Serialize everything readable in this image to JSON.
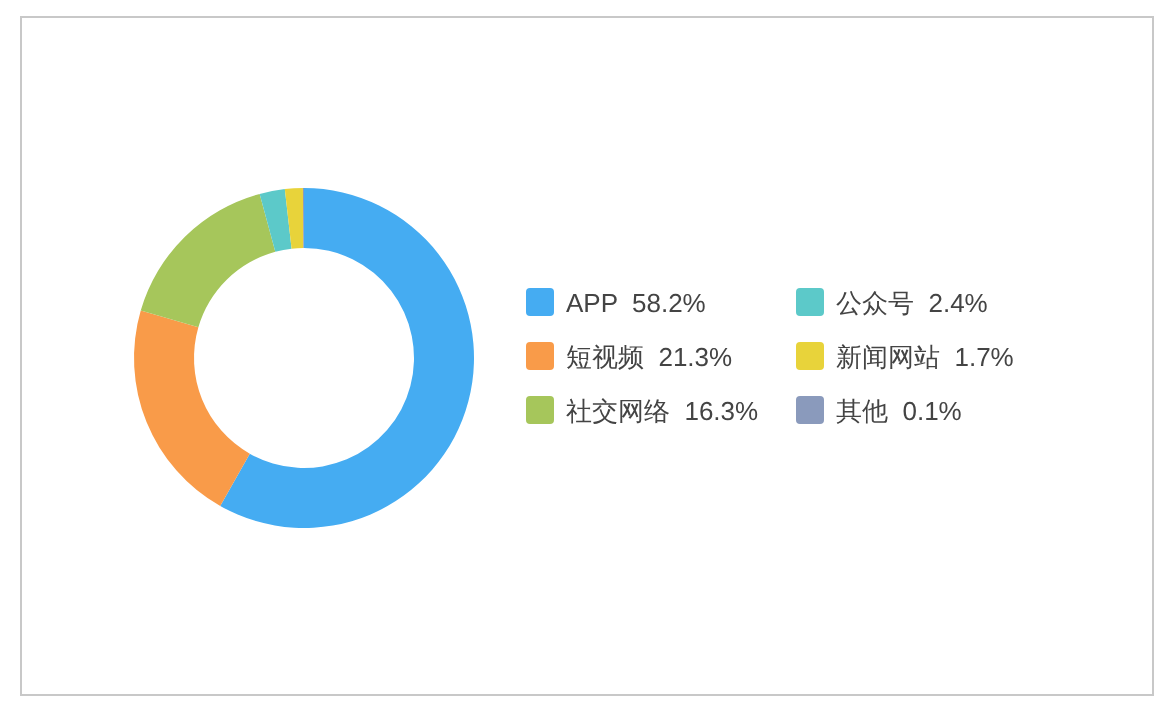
{
  "chart_data": {
    "type": "donut",
    "categories": [
      "APP",
      "短视频",
      "社交网络",
      "公众号",
      "新闻网站",
      "其他"
    ],
    "values": [
      58.2,
      21.3,
      16.3,
      2.4,
      1.7,
      0.1
    ],
    "colors": [
      "#45acf2",
      "#f99b49",
      "#a6c65b",
      "#5cc9c9",
      "#e8d33a",
      "#8a9abc"
    ],
    "value_labels": [
      "58.2%",
      "21.3%",
      "16.3%",
      "2.4%",
      "1.7%",
      "0.1%"
    ],
    "legend": "right"
  }
}
